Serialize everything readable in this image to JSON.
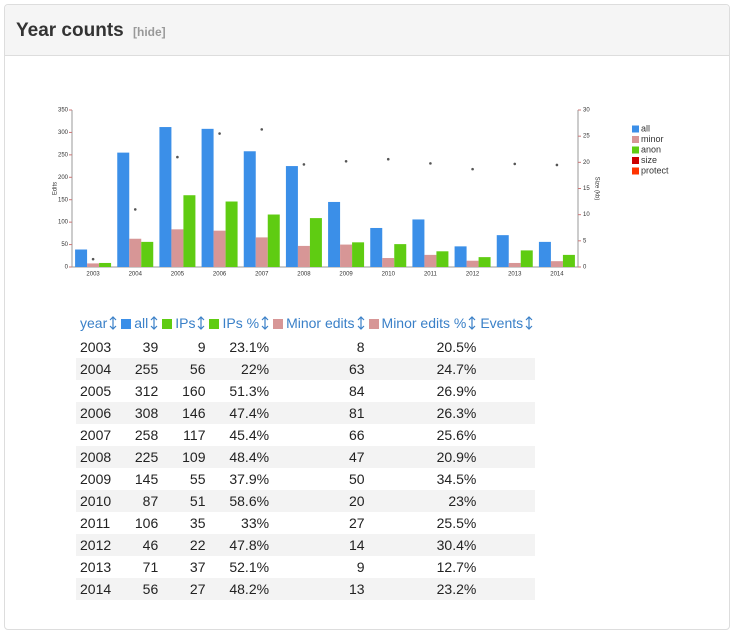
{
  "panel": {
    "title": "Year counts",
    "toggle": "[hide]"
  },
  "chart_data": {
    "type": "bar",
    "categories": [
      "2003",
      "2004",
      "2005",
      "2006",
      "2007",
      "2008",
      "2009",
      "2010",
      "2011",
      "2012",
      "2013",
      "2014"
    ],
    "series": [
      {
        "name": "all",
        "color": "#3b8fe8",
        "values": [
          39,
          255,
          312,
          308,
          258,
          225,
          145,
          87,
          106,
          46,
          71,
          56
        ]
      },
      {
        "name": "minor",
        "color": "#d79696",
        "values": [
          8,
          63,
          84,
          81,
          66,
          47,
          50,
          20,
          27,
          14,
          9,
          13
        ]
      },
      {
        "name": "anon",
        "color": "#5fcc12",
        "values": [
          9,
          56,
          160,
          146,
          117,
          109,
          55,
          51,
          35,
          22,
          37,
          27
        ]
      },
      {
        "name": "size",
        "color": "#cc0000",
        "axis": "y2",
        "values": [
          1.5,
          11,
          21,
          25.5,
          26.3,
          19.6,
          20.2,
          20.6,
          19.8,
          18.7,
          19.7,
          19.5
        ]
      },
      {
        "name": "protect",
        "color": "#ff3300",
        "values": [
          null,
          null,
          null,
          null,
          null,
          null,
          null,
          null,
          null,
          null,
          null,
          null
        ]
      }
    ],
    "ylabel": "Edits",
    "y2label": "Size (kb)",
    "ylim": [
      0,
      350
    ],
    "yticks": [
      0,
      50,
      100,
      150,
      200,
      250,
      300,
      350
    ],
    "y2lim": [
      0,
      30
    ],
    "y2ticks": [
      0,
      5,
      10,
      15,
      20,
      25,
      30
    ]
  },
  "table": {
    "columns": [
      "year",
      "all",
      "IPs",
      "IPs %",
      "Minor edits",
      "Minor edits %",
      "Events"
    ],
    "rows": [
      [
        "2003",
        39,
        9,
        "23.1%",
        8,
        "20.5%"
      ],
      [
        "2004",
        255,
        56,
        "22%",
        63,
        "24.7%"
      ],
      [
        "2005",
        312,
        160,
        "51.3%",
        84,
        "26.9%"
      ],
      [
        "2006",
        308,
        146,
        "47.4%",
        81,
        "26.3%"
      ],
      [
        "2007",
        258,
        117,
        "45.4%",
        66,
        "25.6%"
      ],
      [
        "2008",
        225,
        109,
        "48.4%",
        47,
        "20.9%"
      ],
      [
        "2009",
        145,
        55,
        "37.9%",
        50,
        "34.5%"
      ],
      [
        "2010",
        87,
        51,
        "58.6%",
        20,
        "23%"
      ],
      [
        "2011",
        106,
        35,
        "33%",
        27,
        "25.5%"
      ],
      [
        "2012",
        46,
        22,
        "47.8%",
        14,
        "30.4%"
      ],
      [
        "2013",
        71,
        37,
        "52.1%",
        9,
        "12.7%"
      ],
      [
        "2014",
        56,
        27,
        "48.2%",
        13,
        "23.2%"
      ]
    ]
  }
}
